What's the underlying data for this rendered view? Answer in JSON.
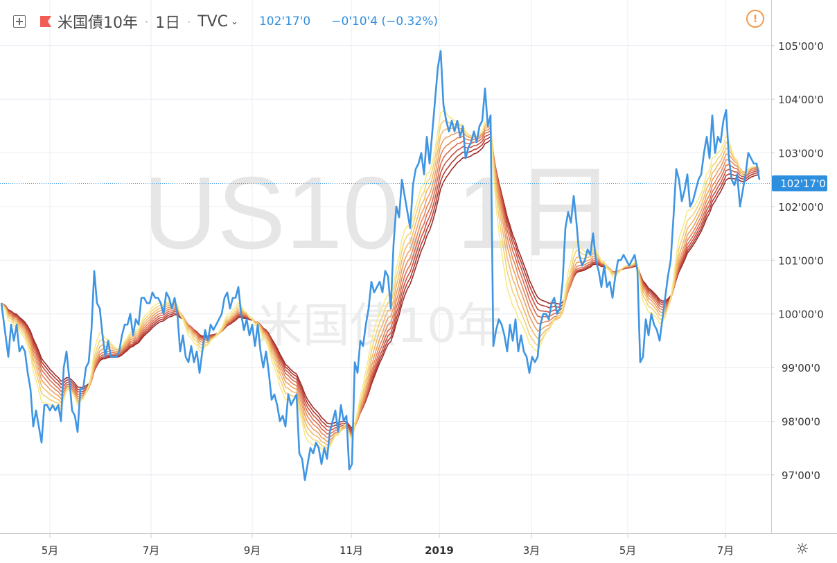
{
  "header": {
    "symbol": "米国債10年",
    "interval": "1日",
    "exchange": "TVC",
    "last_price": "102'17'0",
    "change": "−0'10'4 (−0.32%)",
    "flag_color": "#f25c54"
  },
  "watermark": {
    "main": "US10, 1日",
    "sub": "米国債10年"
  },
  "price_label": "102'17'0",
  "icons": [
    "plus-square-icon",
    "flag-icon",
    "chevron-down-icon",
    "alert-icon",
    "gear-icon"
  ],
  "colors": {
    "price_line": "#3f95e2",
    "ribbon": [
      "#f6ea8a",
      "#f3d178",
      "#f0b96b",
      "#ec9f62",
      "#e5855a",
      "#d96a4e",
      "#c85143",
      "#b23b34",
      "#9a2b28"
    ],
    "grid": "#e8ecf2",
    "last_price_bg": "#2f8fdf"
  },
  "chart_data": {
    "type": "line",
    "title": "",
    "y_ticks": [
      "97'00'0",
      "98'00'0",
      "99'00'0",
      "100'00'0",
      "101'00'0",
      "102'00'0",
      "103'00'0",
      "104'00'0",
      "105'00'0"
    ],
    "y_tick_values": [
      97,
      98,
      99,
      100,
      101,
      102,
      103,
      104,
      105
    ],
    "x_ticks": [
      "5月",
      "7月",
      "9月",
      "11月",
      "2019",
      "3月",
      "5月",
      "7月"
    ],
    "ylim": [
      95.9,
      105.85
    ],
    "xlim": [
      0,
      1113
    ],
    "x_tick_positions": [
      72,
      218,
      364,
      507,
      634,
      767,
      906,
      1047
    ],
    "grid": true,
    "series": [
      {
        "name": "",
        "values": [
          [
            2,
            100.2
          ],
          [
            8,
            99.6
          ],
          [
            12,
            99.2
          ],
          [
            16,
            99.8
          ],
          [
            20,
            99.5
          ],
          [
            24,
            99.8
          ],
          [
            28,
            99.3
          ],
          [
            32,
            99.4
          ],
          [
            36,
            99.3
          ],
          [
            40,
            98.9
          ],
          [
            44,
            98.6
          ],
          [
            48,
            97.9
          ],
          [
            52,
            98.2
          ],
          [
            56,
            97.9
          ],
          [
            60,
            97.6
          ],
          [
            64,
            98.3
          ],
          [
            68,
            98.3
          ],
          [
            72,
            98.2
          ],
          [
            76,
            98.3
          ],
          [
            80,
            98.2
          ],
          [
            84,
            98.3
          ],
          [
            88,
            98.0
          ],
          [
            92,
            99.0
          ],
          [
            96,
            99.3
          ],
          [
            100,
            98.8
          ],
          [
            104,
            98.2
          ],
          [
            108,
            98.1
          ],
          [
            112,
            97.8
          ],
          [
            116,
            98.6
          ],
          [
            120,
            98.6
          ],
          [
            124,
            99.0
          ],
          [
            128,
            99.1
          ],
          [
            132,
            99.7
          ],
          [
            136,
            100.8
          ],
          [
            140,
            100.2
          ],
          [
            144,
            100.1
          ],
          [
            148,
            99.6
          ],
          [
            152,
            99.2
          ],
          [
            156,
            99.5
          ],
          [
            160,
            99.2
          ],
          [
            164,
            99.2
          ],
          [
            168,
            99.2
          ],
          [
            172,
            99.3
          ],
          [
            176,
            99.6
          ],
          [
            180,
            99.8
          ],
          [
            184,
            99.8
          ],
          [
            188,
            100.0
          ],
          [
            192,
            99.6
          ],
          [
            196,
            99.9
          ],
          [
            200,
            99.8
          ],
          [
            204,
            100.3
          ],
          [
            208,
            100.3
          ],
          [
            212,
            100.2
          ],
          [
            216,
            100.2
          ],
          [
            220,
            100.4
          ],
          [
            224,
            100.3
          ],
          [
            228,
            100.3
          ],
          [
            232,
            100.2
          ],
          [
            236,
            100.0
          ],
          [
            240,
            100.4
          ],
          [
            244,
            100.3
          ],
          [
            248,
            100.1
          ],
          [
            252,
            100.3
          ],
          [
            256,
            100.0
          ],
          [
            260,
            99.3
          ],
          [
            264,
            99.6
          ],
          [
            268,
            99.2
          ],
          [
            272,
            99.1
          ],
          [
            276,
            99.4
          ],
          [
            280,
            99.1
          ],
          [
            284,
            99.3
          ],
          [
            288,
            98.9
          ],
          [
            292,
            99.3
          ],
          [
            296,
            99.7
          ],
          [
            300,
            99.5
          ],
          [
            304,
            99.8
          ],
          [
            308,
            99.7
          ],
          [
            312,
            99.8
          ],
          [
            316,
            99.9
          ],
          [
            320,
            100.0
          ],
          [
            324,
            100.3
          ],
          [
            328,
            100.4
          ],
          [
            332,
            100.1
          ],
          [
            336,
            100.3
          ],
          [
            340,
            100.3
          ],
          [
            344,
            100.5
          ],
          [
            348,
            100.0
          ],
          [
            352,
            99.7
          ],
          [
            356,
            99.9
          ],
          [
            360,
            99.6
          ],
          [
            364,
            99.8
          ],
          [
            368,
            99.4
          ],
          [
            372,
            99.8
          ],
          [
            376,
            99.3
          ],
          [
            380,
            99.0
          ],
          [
            384,
            99.3
          ],
          [
            388,
            98.9
          ],
          [
            392,
            98.4
          ],
          [
            396,
            98.5
          ],
          [
            400,
            98.3
          ],
          [
            404,
            98.0
          ],
          [
            408,
            98.1
          ],
          [
            412,
            97.9
          ],
          [
            416,
            98.5
          ],
          [
            420,
            98.3
          ],
          [
            424,
            98.4
          ],
          [
            428,
            98.5
          ],
          [
            432,
            97.4
          ],
          [
            436,
            97.3
          ],
          [
            440,
            96.9
          ],
          [
            444,
            97.2
          ],
          [
            448,
            97.5
          ],
          [
            452,
            97.4
          ],
          [
            456,
            97.6
          ],
          [
            460,
            97.5
          ],
          [
            464,
            97.2
          ],
          [
            468,
            97.5
          ],
          [
            472,
            97.3
          ],
          [
            476,
            97.8
          ],
          [
            480,
            98.0
          ],
          [
            484,
            98.2
          ],
          [
            488,
            97.8
          ],
          [
            492,
            98.3
          ],
          [
            496,
            98.0
          ],
          [
            500,
            98.1
          ],
          [
            504,
            97.1
          ],
          [
            508,
            97.2
          ],
          [
            512,
            99.1
          ],
          [
            516,
            98.9
          ],
          [
            520,
            99.5
          ],
          [
            524,
            99.4
          ],
          [
            528,
            99.8
          ],
          [
            532,
            100.1
          ],
          [
            536,
            100.6
          ],
          [
            540,
            100.4
          ],
          [
            544,
            100.5
          ],
          [
            548,
            100.6
          ],
          [
            552,
            100.4
          ],
          [
            556,
            100.8
          ],
          [
            560,
            100.7
          ],
          [
            564,
            100.1
          ],
          [
            568,
            101.3
          ],
          [
            572,
            102.0
          ],
          [
            576,
            101.8
          ],
          [
            580,
            102.5
          ],
          [
            584,
            102.2
          ],
          [
            588,
            101.9
          ],
          [
            592,
            101.6
          ],
          [
            596,
            102.4
          ],
          [
            600,
            102.7
          ],
          [
            604,
            102.8
          ],
          [
            608,
            103.0
          ],
          [
            612,
            102.6
          ],
          [
            616,
            103.3
          ],
          [
            620,
            102.8
          ],
          [
            624,
            103.4
          ],
          [
            628,
            104.0
          ],
          [
            632,
            104.6
          ],
          [
            636,
            104.9
          ],
          [
            640,
            103.9
          ],
          [
            644,
            103.6
          ],
          [
            648,
            103.4
          ],
          [
            652,
            103.6
          ],
          [
            656,
            103.4
          ],
          [
            660,
            103.6
          ],
          [
            664,
            103.3
          ],
          [
            668,
            103.5
          ],
          [
            672,
            102.9
          ],
          [
            676,
            103.1
          ],
          [
            680,
            103.2
          ],
          [
            684,
            103.4
          ],
          [
            688,
            103.2
          ],
          [
            692,
            103.5
          ],
          [
            696,
            103.6
          ],
          [
            700,
            104.2
          ],
          [
            704,
            103.5
          ],
          [
            708,
            103.7
          ],
          [
            712,
            99.4
          ],
          [
            716,
            99.7
          ],
          [
            720,
            99.9
          ],
          [
            724,
            99.8
          ],
          [
            728,
            99.6
          ],
          [
            732,
            99.3
          ],
          [
            736,
            99.8
          ],
          [
            740,
            99.5
          ],
          [
            744,
            99.9
          ],
          [
            748,
            99.3
          ],
          [
            752,
            99.6
          ],
          [
            756,
            99.3
          ],
          [
            760,
            99.2
          ],
          [
            764,
            98.9
          ],
          [
            768,
            99.2
          ],
          [
            772,
            99.1
          ],
          [
            776,
            99.2
          ],
          [
            780,
            99.8
          ],
          [
            784,
            100.0
          ],
          [
            788,
            100.0
          ],
          [
            792,
            99.9
          ],
          [
            796,
            100.2
          ],
          [
            800,
            100.3
          ],
          [
            804,
            100.0
          ],
          [
            808,
            100.1
          ],
          [
            812,
            100.6
          ],
          [
            816,
            101.6
          ],
          [
            820,
            101.9
          ],
          [
            824,
            101.7
          ],
          [
            828,
            102.2
          ],
          [
            832,
            101.7
          ],
          [
            836,
            101.1
          ],
          [
            840,
            100.9
          ],
          [
            844,
            101.0
          ],
          [
            848,
            101.2
          ],
          [
            852,
            101.1
          ],
          [
            856,
            101.5
          ],
          [
            860,
            101.0
          ],
          [
            864,
            100.8
          ],
          [
            868,
            100.5
          ],
          [
            872,
            100.9
          ],
          [
            876,
            100.5
          ],
          [
            880,
            100.6
          ],
          [
            884,
            100.3
          ],
          [
            888,
            100.7
          ],
          [
            892,
            101.0
          ],
          [
            896,
            101.0
          ],
          [
            900,
            101.1
          ],
          [
            904,
            101.0
          ],
          [
            908,
            100.9
          ],
          [
            912,
            101.0
          ],
          [
            916,
            101.1
          ],
          [
            920,
            100.8
          ],
          [
            924,
            99.1
          ],
          [
            928,
            99.2
          ],
          [
            932,
            99.9
          ],
          [
            936,
            99.6
          ],
          [
            940,
            100.0
          ],
          [
            944,
            99.8
          ],
          [
            948,
            99.7
          ],
          [
            952,
            99.5
          ],
          [
            956,
            99.9
          ],
          [
            960,
            100.3
          ],
          [
            964,
            100.7
          ],
          [
            968,
            101.0
          ],
          [
            972,
            101.8
          ],
          [
            976,
            102.7
          ],
          [
            980,
            102.5
          ],
          [
            984,
            102.1
          ],
          [
            988,
            102.3
          ],
          [
            992,
            102.6
          ],
          [
            996,
            102.0
          ],
          [
            1000,
            102.1
          ],
          [
            1004,
            102.3
          ],
          [
            1008,
            102.5
          ],
          [
            1012,
            102.6
          ],
          [
            1016,
            103.0
          ],
          [
            1020,
            103.3
          ],
          [
            1024,
            102.9
          ],
          [
            1028,
            103.7
          ],
          [
            1032,
            103.0
          ],
          [
            1036,
            103.3
          ],
          [
            1040,
            103.2
          ],
          [
            1044,
            103.6
          ],
          [
            1048,
            103.8
          ],
          [
            1052,
            102.9
          ],
          [
            1056,
            102.5
          ],
          [
            1060,
            102.4
          ],
          [
            1064,
            102.6
          ],
          [
            1068,
            102.0
          ],
          [
            1072,
            102.3
          ],
          [
            1076,
            102.6
          ],
          [
            1080,
            103.0
          ],
          [
            1084,
            102.9
          ],
          [
            1088,
            102.8
          ],
          [
            1092,
            102.8
          ],
          [
            1096,
            102.5
          ]
        ]
      }
    ]
  }
}
